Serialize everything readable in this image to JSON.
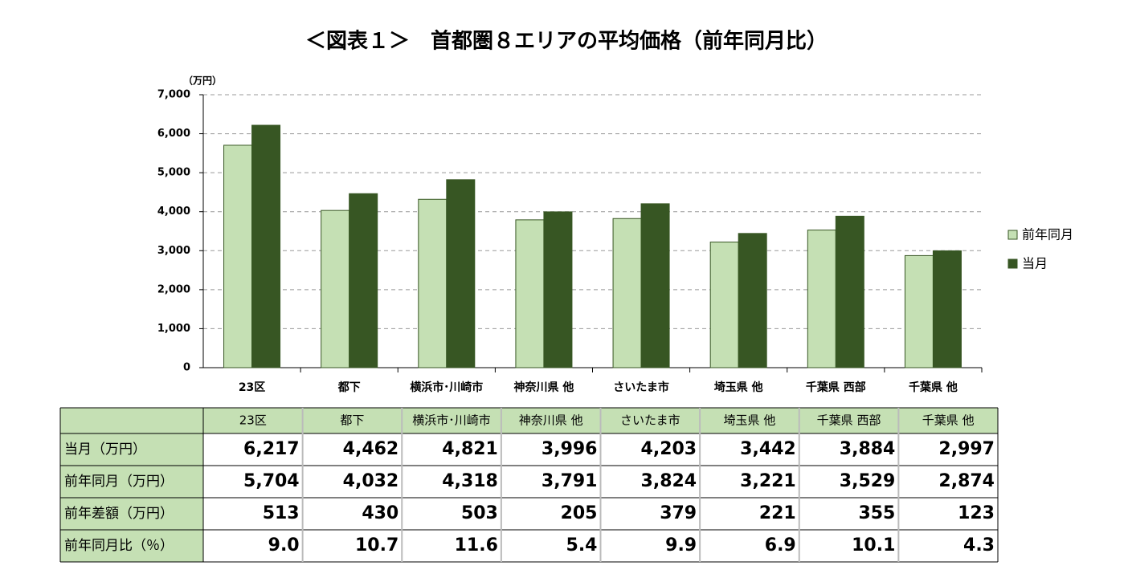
{
  "chart_data": {
    "type": "bar",
    "title": "＜図表１＞　首都圏８エリアの平均価格（前年同月比）",
    "y_unit": "（万円）",
    "categories": [
      "23区",
      "都下",
      "横浜市･川崎市",
      "神奈川県 他",
      "さいたま市",
      "埼玉県 他",
      "千葉県 西部",
      "千葉県 他"
    ],
    "series": [
      {
        "name": "前年同月",
        "color": "#c5e0b4",
        "values": [
          5704,
          4032,
          4318,
          3791,
          3824,
          3221,
          3529,
          2874
        ]
      },
      {
        "name": "当月",
        "color": "#375623",
        "values": [
          6217,
          4462,
          4821,
          3996,
          4203,
          3442,
          3884,
          2997
        ]
      }
    ],
    "ylim": [
      0,
      7000
    ],
    "yticks": [
      0,
      {
        "value": 1000,
        "label": "1,000"
      },
      {
        "value": 2000,
        "label": "2,000"
      },
      {
        "value": 3000,
        "label": "3,000"
      },
      {
        "value": 4000,
        "label": "4,000"
      },
      {
        "value": 5000,
        "label": "5,000"
      },
      {
        "value": 6000,
        "label": "6,000"
      },
      {
        "value": 7000,
        "label": "7,000"
      }
    ],
    "grid": true,
    "legend": "right"
  },
  "table": {
    "rows": [
      [
        "当月（万円）",
        "6,217",
        "4,462",
        "4,821",
        "3,996",
        "4,203",
        "3,442",
        "3,884",
        "2,997"
      ],
      [
        "前年同月（万円）",
        "5,704",
        "4,032",
        "4,318",
        "3,791",
        "3,824",
        "3,221",
        "3,529",
        "2,874"
      ],
      [
        "前年差額（万円）",
        "513",
        "430",
        "503",
        "205",
        "379",
        "221",
        "355",
        "123"
      ],
      [
        "前年同月比（％）",
        "9.0",
        "10.7",
        "11.6",
        "5.4",
        "9.9",
        "6.9",
        "10.1",
        "4.3"
      ]
    ]
  }
}
